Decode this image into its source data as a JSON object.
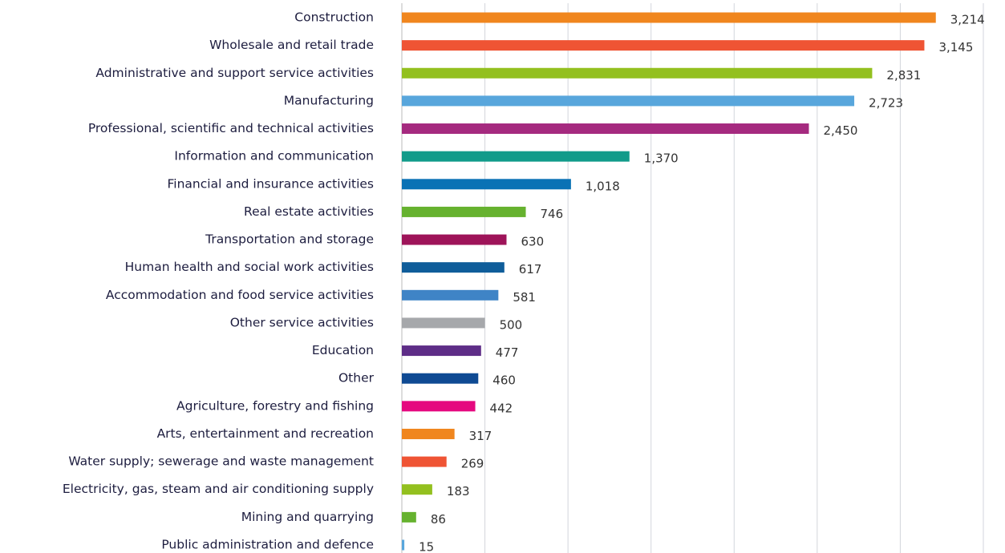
{
  "chart_data": {
    "type": "bar",
    "orientation": "horizontal",
    "categories": [
      "Construction",
      "Wholesale and retail trade",
      "Administrative and support service activities",
      "Manufacturing",
      "Professional, scientific and technical activities",
      "Information and communication",
      "Financial and insurance activities",
      "Real estate activities",
      "Transportation and storage",
      "Human health and social work activities",
      "Accommodation and food service activities",
      "Other service activities",
      "Education",
      "Other",
      "Agriculture, forestry and fishing",
      "Arts, entertainment and recreation",
      "Water supply; sewerage and waste management",
      "Electricity, gas, steam and air conditioning supply",
      "Mining and quarrying",
      "Public administration and defence"
    ],
    "values": [
      3214,
      3145,
      2831,
      2723,
      2450,
      1370,
      1018,
      746,
      630,
      617,
      581,
      500,
      477,
      460,
      442,
      317,
      269,
      183,
      86,
      15
    ],
    "value_labels": [
      "3,214",
      "3,145",
      "2,831",
      "2,723",
      "2,450",
      "1,370",
      "1,018",
      "746",
      "630",
      "617",
      "581",
      "500",
      "477",
      "460",
      "442",
      "317",
      "269",
      "183",
      "86",
      "15"
    ],
    "colors": [
      "#f0861e",
      "#ef5434",
      "#93c01f",
      "#58a6dc",
      "#a52a7f",
      "#119b8a",
      "#0a72b5",
      "#66b22f",
      "#9e1459",
      "#0f5d9a",
      "#3f84c6",
      "#a6a8ab",
      "#5e2d87",
      "#0f4a93",
      "#e5097f",
      "#f0861e",
      "#ef5434",
      "#93c01f",
      "#66b22f",
      "#58a6dc"
    ],
    "xlim": [
      0,
      3500
    ],
    "xticks": [
      0,
      500,
      1000,
      1500,
      2000,
      2500,
      3000,
      3500
    ],
    "grid": true
  }
}
